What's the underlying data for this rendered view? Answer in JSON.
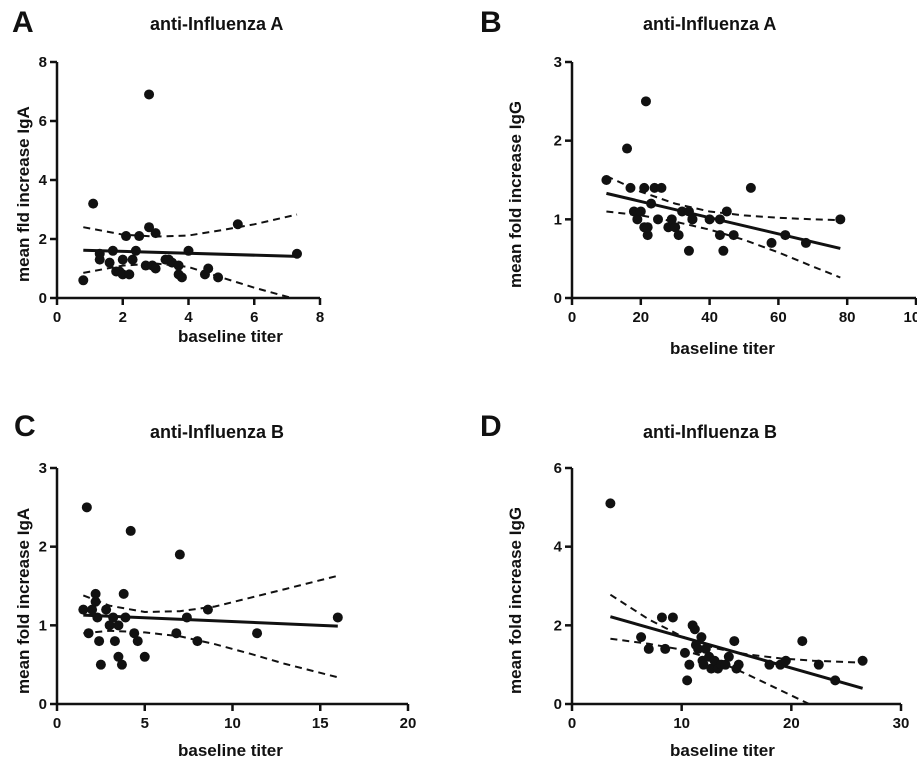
{
  "chart_data": [
    {
      "type": "scatter",
      "panel": "A",
      "title": "anti-Influenza A",
      "xlabel": "baseline titer",
      "ylabel": "mean fld increase IgA",
      "xlim": [
        0,
        8
      ],
      "ylim": [
        0,
        8
      ],
      "xticks": [
        0,
        2,
        4,
        6,
        8
      ],
      "yticks": [
        0,
        2,
        4,
        6,
        8
      ],
      "points": [
        [
          0.8,
          0.6
        ],
        [
          1.1,
          3.2
        ],
        [
          1.3,
          1.3
        ],
        [
          1.3,
          1.5
        ],
        [
          1.6,
          1.2
        ],
        [
          1.7,
          1.6
        ],
        [
          1.8,
          0.9
        ],
        [
          1.9,
          0.9
        ],
        [
          2.0,
          0.8
        ],
        [
          2.0,
          1.3
        ],
        [
          2.1,
          2.1
        ],
        [
          2.2,
          0.8
        ],
        [
          2.3,
          1.3
        ],
        [
          2.4,
          1.6
        ],
        [
          2.5,
          2.1
        ],
        [
          2.7,
          1.1
        ],
        [
          2.8,
          6.9
        ],
        [
          2.8,
          2.4
        ],
        [
          2.9,
          1.1
        ],
        [
          3.0,
          1.0
        ],
        [
          3.0,
          2.2
        ],
        [
          3.3,
          1.3
        ],
        [
          3.4,
          1.3
        ],
        [
          3.5,
          1.2
        ],
        [
          3.7,
          0.8
        ],
        [
          3.7,
          1.1
        ],
        [
          3.8,
          0.7
        ],
        [
          4.0,
          1.6
        ],
        [
          4.5,
          0.8
        ],
        [
          4.6,
          1.0
        ],
        [
          4.9,
          0.7
        ],
        [
          5.5,
          2.5
        ],
        [
          7.3,
          1.5
        ]
      ],
      "fit": {
        "x": [
          0.8,
          7.3
        ],
        "y": [
          1.62,
          1.41
        ]
      },
      "ci_upper": {
        "x": [
          0.8,
          2.0,
          3.0,
          4.0,
          5.0,
          6.0,
          7.3
        ],
        "y": [
          2.4,
          2.15,
          2.08,
          2.12,
          2.3,
          2.5,
          2.83
        ]
      },
      "ci_lower": {
        "x": [
          0.8,
          2.0,
          3.0,
          4.0,
          5.0,
          6.0,
          7.3
        ],
        "y": [
          0.85,
          1.1,
          1.17,
          1.05,
          0.7,
          0.35,
          -0.05
        ]
      }
    },
    {
      "type": "scatter",
      "panel": "B",
      "title": "anti-Influenza A",
      "xlabel": "baseline titer",
      "ylabel": "mean fold increase IgG",
      "xlim": [
        0,
        100
      ],
      "ylim": [
        0,
        3
      ],
      "xticks": [
        0,
        20,
        40,
        60,
        80,
        100
      ],
      "yticks": [
        0,
        1,
        2,
        3
      ],
      "points": [
        [
          10,
          1.5
        ],
        [
          16,
          1.9
        ],
        [
          17,
          1.4
        ],
        [
          18,
          1.1
        ],
        [
          19,
          1.0
        ],
        [
          20,
          1.1
        ],
        [
          21,
          0.9
        ],
        [
          21,
          1.4
        ],
        [
          21.5,
          2.5
        ],
        [
          22,
          0.8
        ],
        [
          22,
          0.9
        ],
        [
          23,
          1.2
        ],
        [
          24,
          1.4
        ],
        [
          25,
          1.0
        ],
        [
          26,
          1.4
        ],
        [
          28,
          0.9
        ],
        [
          29,
          1.0
        ],
        [
          30,
          0.9
        ],
        [
          31,
          0.8
        ],
        [
          32,
          1.1
        ],
        [
          34,
          1.1
        ],
        [
          34,
          0.6
        ],
        [
          35,
          1.0
        ],
        [
          35,
          1.0
        ],
        [
          40,
          1.0
        ],
        [
          43,
          1.0
        ],
        [
          43,
          0.8
        ],
        [
          44,
          0.6
        ],
        [
          45,
          1.1
        ],
        [
          47,
          0.8
        ],
        [
          52,
          1.4
        ],
        [
          58,
          0.7
        ],
        [
          62,
          0.8
        ],
        [
          68,
          0.7
        ],
        [
          78,
          1.0
        ]
      ],
      "fit": {
        "x": [
          10,
          78
        ],
        "y": [
          1.33,
          0.63
        ]
      },
      "ci_upper": {
        "x": [
          10,
          20,
          30,
          40,
          50,
          60,
          70,
          78
        ],
        "y": [
          1.55,
          1.35,
          1.2,
          1.1,
          1.05,
          1.02,
          1.0,
          0.99
        ]
      },
      "ci_lower": {
        "x": [
          10,
          20,
          30,
          40,
          50,
          60,
          70,
          78
        ],
        "y": [
          1.1,
          1.05,
          0.97,
          0.87,
          0.74,
          0.58,
          0.4,
          0.26
        ]
      }
    },
    {
      "type": "scatter",
      "panel": "C",
      "title": "anti-Influenza B",
      "xlabel": "baseline titer",
      "ylabel": "mean fold increase IgA",
      "xlim": [
        0,
        20
      ],
      "ylim": [
        0,
        3
      ],
      "xticks": [
        0,
        5,
        10,
        15,
        20
      ],
      "yticks": [
        0,
        1,
        2,
        3
      ],
      "points": [
        [
          1.5,
          1.2
        ],
        [
          1.7,
          2.5
        ],
        [
          1.8,
          0.9
        ],
        [
          2.0,
          1.2
        ],
        [
          2.2,
          1.4
        ],
        [
          2.2,
          1.3
        ],
        [
          2.3,
          1.1
        ],
        [
          2.4,
          0.8
        ],
        [
          2.5,
          0.5
        ],
        [
          2.8,
          1.2
        ],
        [
          3.0,
          1.0
        ],
        [
          3.2,
          1.1
        ],
        [
          3.3,
          0.8
        ],
        [
          3.5,
          1.0
        ],
        [
          3.5,
          0.6
        ],
        [
          3.7,
          0.5
        ],
        [
          3.8,
          1.4
        ],
        [
          3.9,
          1.1
        ],
        [
          4.2,
          2.2
        ],
        [
          4.4,
          0.9
        ],
        [
          4.6,
          0.8
        ],
        [
          5.0,
          0.6
        ],
        [
          6.8,
          0.9
        ],
        [
          7.0,
          1.9
        ],
        [
          7.4,
          1.1
        ],
        [
          8.0,
          0.8
        ],
        [
          8.6,
          1.2
        ],
        [
          11.4,
          0.9
        ],
        [
          16.0,
          1.1
        ]
      ],
      "fit": {
        "x": [
          1.5,
          16.0
        ],
        "y": [
          1.13,
          0.99
        ]
      },
      "ci_upper": {
        "x": [
          1.5,
          3.0,
          5.0,
          7.0,
          9.0,
          11.0,
          13.0,
          16.0
        ],
        "y": [
          1.38,
          1.25,
          1.17,
          1.18,
          1.24,
          1.35,
          1.46,
          1.63
        ]
      },
      "ci_lower": {
        "x": [
          1.5,
          3.0,
          5.0,
          7.0,
          9.0,
          11.0,
          13.0,
          16.0
        ],
        "y": [
          0.9,
          0.93,
          0.91,
          0.86,
          0.76,
          0.64,
          0.51,
          0.34
        ]
      }
    },
    {
      "type": "scatter",
      "panel": "D",
      "title": "anti-Influenza B",
      "xlabel": "baseline titer",
      "ylabel": "mean fold increase IgG",
      "xlim": [
        0,
        30
      ],
      "ylim": [
        0,
        6
      ],
      "xticks": [
        0,
        10,
        20,
        30
      ],
      "yticks": [
        0,
        2,
        4,
        6
      ],
      "points": [
        [
          3.5,
          5.1
        ],
        [
          6.3,
          1.7
        ],
        [
          7.0,
          1.4
        ],
        [
          8.2,
          2.2
        ],
        [
          8.5,
          1.4
        ],
        [
          9.2,
          2.2
        ],
        [
          10.3,
          1.3
        ],
        [
          10.5,
          0.6
        ],
        [
          10.7,
          1.0
        ],
        [
          11.0,
          2.0
        ],
        [
          11.2,
          1.9
        ],
        [
          11.3,
          1.5
        ],
        [
          11.5,
          1.4
        ],
        [
          11.8,
          1.7
        ],
        [
          11.9,
          1.1
        ],
        [
          12.0,
          1.0
        ],
        [
          12.2,
          1.4
        ],
        [
          12.5,
          1.2
        ],
        [
          12.7,
          0.9
        ],
        [
          13.0,
          1.1
        ],
        [
          13.3,
          0.9
        ],
        [
          13.6,
          1.0
        ],
        [
          14.0,
          1.0
        ],
        [
          14.3,
          1.2
        ],
        [
          14.8,
          1.6
        ],
        [
          15.2,
          1.0
        ],
        [
          15.0,
          0.9
        ],
        [
          18.0,
          1.0
        ],
        [
          19.0,
          1.0
        ],
        [
          19.5,
          1.1
        ],
        [
          21.0,
          1.6
        ],
        [
          22.5,
          1.0
        ],
        [
          24.0,
          0.6
        ],
        [
          26.5,
          1.1
        ]
      ],
      "fit": {
        "x": [
          3.5,
          26.5
        ],
        "y": [
          2.22,
          0.4
        ]
      },
      "ci_upper": {
        "x": [
          3.5,
          7,
          10,
          13,
          16,
          19,
          22,
          26.5
        ],
        "y": [
          2.78,
          2.15,
          1.72,
          1.42,
          1.26,
          1.16,
          1.1,
          1.05
        ]
      },
      "ci_lower": {
        "x": [
          3.5,
          7,
          10,
          13,
          16,
          19,
          22,
          26.5
        ],
        "y": [
          1.66,
          1.53,
          1.38,
          1.13,
          0.75,
          0.35,
          -0.05,
          -0.65
        ]
      }
    }
  ]
}
